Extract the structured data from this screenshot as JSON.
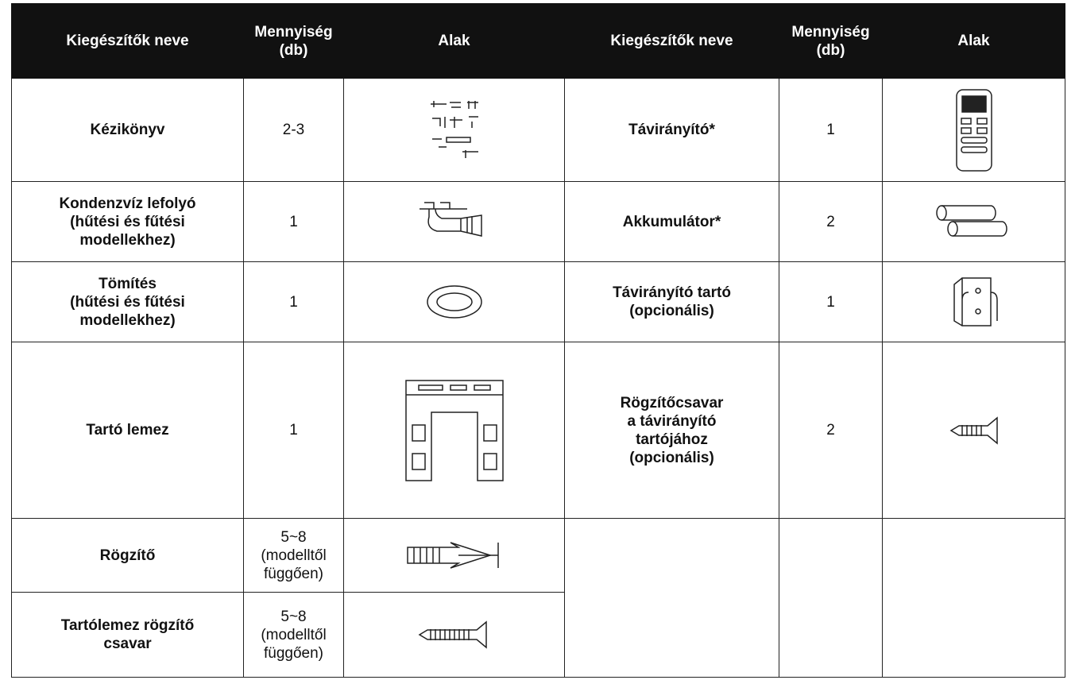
{
  "table": {
    "header": [
      "Kiegészítők neve",
      "Mennyiség\n(db)",
      "Alak",
      "Kiegészítők neve",
      "Mennyiség\n(db)",
      "Alak"
    ],
    "rows": [
      [
        "Kézikönyv",
        "2-3",
        "Távirányító*",
        "1"
      ],
      [
        "Kondenzvíz lefolyó\n(hűtési és fűtési\nmodellekhez)",
        "1",
        "Akkumulátor*",
        "2"
      ],
      [
        "Tömítés\n(hűtési és fűtési\nmodellekhez)",
        "1",
        "Távirányító tartó\n(opcionális)",
        "1"
      ],
      [
        "Tartó lemez",
        "1",
        "Rögzítőcsavar\na távirányító\ntartójához\n(opcionális)",
        "2"
      ],
      [
        "Rögzítő",
        "5~8\n(modelltől\nfüggően)"
      ],
      [
        "Tartólemez rögzítő\ncsavar",
        "5~8\n(modelltől\nfüggően)"
      ]
    ]
  }
}
